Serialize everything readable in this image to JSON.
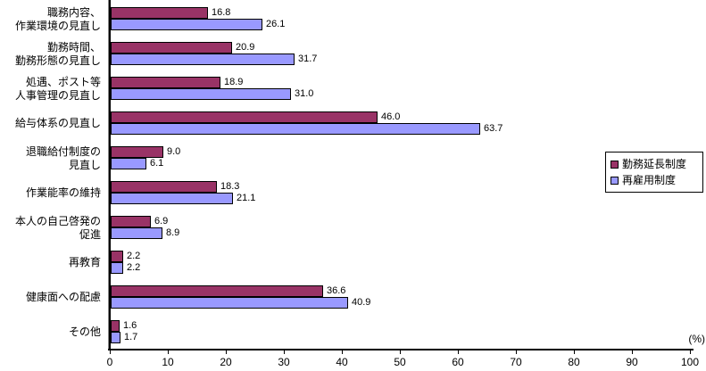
{
  "chart_data": {
    "type": "bar",
    "orientation": "horizontal",
    "title": "",
    "xlabel": "(%)",
    "ylabel": "",
    "xlim": [
      0,
      100
    ],
    "xticks": [
      0,
      10,
      20,
      30,
      40,
      50,
      60,
      70,
      80,
      90,
      100
    ],
    "grid": false,
    "legend_position": "right",
    "categories": [
      "職務内容、\n作業環境の見直し",
      "勤務時間、\n勤務形態の見直し",
      "処遇、ポスト等\n人事管理の見直し",
      "給与体系の見直し",
      "退職給付制度の\n見直し",
      "作業能率の維持",
      "本人の自己啓発の\n促進",
      "再教育",
      "健康面への配慮",
      "その他"
    ],
    "series": [
      {
        "name": "勤務延長制度",
        "color": "#993366",
        "values": [
          16.8,
          20.9,
          18.9,
          46.0,
          9.0,
          18.3,
          6.9,
          2.2,
          36.6,
          1.6
        ]
      },
      {
        "name": "再雇用制度",
        "color": "#9999FF",
        "values": [
          26.1,
          31.7,
          31.0,
          63.7,
          6.1,
          21.1,
          8.9,
          2.2,
          40.9,
          1.7
        ]
      }
    ],
    "value_label_decimals": 1,
    "bar_border_color": "#000000",
    "axis_color": "#000000",
    "background_color": "#ffffff"
  }
}
